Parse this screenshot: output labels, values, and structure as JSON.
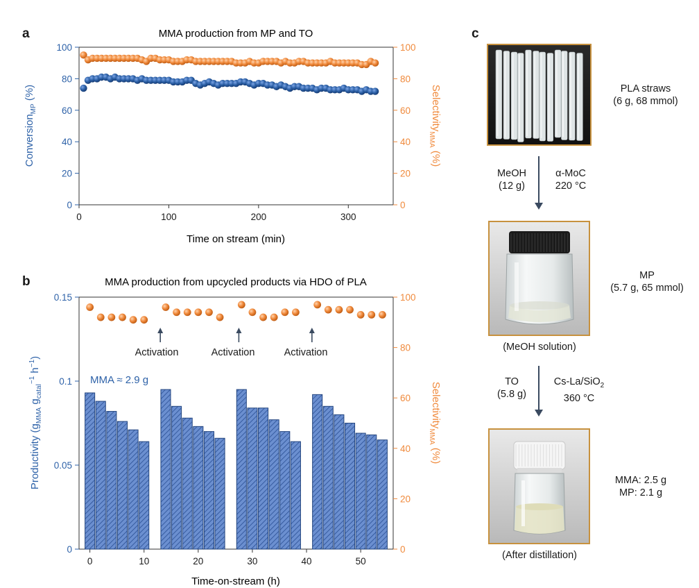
{
  "colors": {
    "blue": "#2e62a8",
    "orange": "#f08a3c",
    "photo_border": "#c7913e",
    "bar_fill": "#6b8fd0",
    "axis": "#333333"
  },
  "panel_a": {
    "letter": "a",
    "title": "MMA production from MP and TO",
    "xlabel": "Time on stream (min)",
    "ylabel_left": {
      "main": "Conversion",
      "sub": "MP",
      "unit": " (%)"
    },
    "ylabel_right": {
      "main": "Selectivity",
      "sub": "MMA",
      "unit": " (%)"
    }
  },
  "panel_b": {
    "letter": "b",
    "title": "MMA production from upcycled products via HDO of PLA",
    "xlabel": "Time-on-stream (h)",
    "ylabel_left": {
      "p1": "Productivity (g",
      "s1": "MMA",
      "p2": " g",
      "s2": "catal",
      "sup1": "−1",
      "p3": " h",
      "sup2": "−1",
      "p4": ")"
    },
    "ylabel_right": {
      "main": "Selectivity",
      "sub": "MMA",
      "unit": " (%)"
    },
    "annotation": "MMA ≈ 2.9 g",
    "activation_labels": [
      "Activation",
      "Activation",
      "Activation"
    ]
  },
  "panel_c": {
    "letter": "c",
    "step1": {
      "left_line1": "MeOH",
      "left_line2": "(12 g)",
      "right_line1": "α-MoC",
      "right_line2": "220 °C"
    },
    "step2": {
      "left_line1": "TO",
      "left_line2": "(5.8 g)",
      "right_line1a": "Cs-La/SiO",
      "right_line1_sub": "2",
      "right_line2": "360 °C"
    },
    "photo1_label": {
      "line1": "PLA straws",
      "line2": "(6 g, 68 mmol)"
    },
    "photo2_label": {
      "line1": "MP",
      "line2": "(5.7 g, 65 mmol)"
    },
    "photo2_caption": "(MeOH solution)",
    "photo3_label": {
      "line1": "MMA: 2.5 g",
      "line2": "MP: 2.1 g"
    },
    "photo3_caption": "(After distillation)"
  },
  "chart_data": [
    {
      "type": "scatter",
      "title": "MMA production from MP and TO",
      "xlabel": "Time on stream (min)",
      "ylabel": "ConversionMP (%)",
      "y2label": "SelectivityMMA (%)",
      "xlim": [
        0,
        350
      ],
      "ylim": [
        0,
        100
      ],
      "y2lim": [
        0,
        100
      ],
      "xticks": [
        0,
        100,
        200,
        300
      ],
      "yticks": [
        0,
        20,
        40,
        60,
        80,
        100
      ],
      "y2ticks": [
        0,
        20,
        40,
        60,
        80,
        100
      ],
      "series": [
        {
          "axis": "left",
          "color": "#2e62a8",
          "x": [
            5,
            10,
            15,
            20,
            25,
            30,
            35,
            40,
            45,
            50,
            55,
            60,
            65,
            70,
            75,
            80,
            85,
            90,
            95,
            100,
            105,
            110,
            115,
            120,
            125,
            130,
            135,
            140,
            145,
            150,
            155,
            160,
            165,
            170,
            175,
            180,
            185,
            190,
            195,
            200,
            205,
            210,
            215,
            220,
            225,
            230,
            235,
            240,
            245,
            250,
            255,
            260,
            265,
            270,
            275,
            280,
            285,
            290,
            295,
            300,
            305,
            310,
            315,
            320,
            325,
            330
          ],
          "values": [
            74,
            79,
            80,
            80,
            81,
            81,
            80,
            81,
            80,
            80,
            80,
            80,
            79,
            80,
            79,
            79,
            79,
            79,
            79,
            79,
            78,
            78,
            78,
            79,
            79,
            77,
            76,
            77,
            78,
            77,
            76,
            77,
            77,
            77,
            77,
            78,
            78,
            77,
            76,
            77,
            77,
            76,
            76,
            75,
            76,
            75,
            74,
            75,
            75,
            74,
            74,
            74,
            73,
            74,
            74,
            73,
            73,
            73,
            74,
            73,
            73,
            73,
            72,
            73,
            72,
            72
          ]
        },
        {
          "axis": "right",
          "color": "#f08a3c",
          "x": [
            5,
            10,
            15,
            20,
            25,
            30,
            35,
            40,
            45,
            50,
            55,
            60,
            65,
            70,
            75,
            80,
            85,
            90,
            95,
            100,
            105,
            110,
            115,
            120,
            125,
            130,
            135,
            140,
            145,
            150,
            155,
            160,
            165,
            170,
            175,
            180,
            185,
            190,
            195,
            200,
            205,
            210,
            215,
            220,
            225,
            230,
            235,
            240,
            245,
            250,
            255,
            260,
            265,
            270,
            275,
            280,
            285,
            290,
            295,
            300,
            305,
            310,
            315,
            320,
            325,
            330
          ],
          "values": [
            95,
            92,
            93,
            93,
            93,
            93,
            93,
            93,
            93,
            93,
            93,
            93,
            93,
            92,
            91,
            93,
            93,
            92,
            92,
            92,
            91,
            91,
            91,
            92,
            92,
            91,
            91,
            91,
            91,
            91,
            91,
            91,
            91,
            91,
            90,
            90,
            90,
            91,
            90,
            90,
            91,
            91,
            91,
            91,
            90,
            91,
            90,
            90,
            91,
            91,
            90,
            90,
            90,
            90,
            90,
            91,
            90,
            90,
            90,
            90,
            90,
            90,
            89,
            89,
            91,
            90
          ]
        }
      ]
    },
    {
      "type": "bar",
      "title": "MMA production from upcycled products via HDO of PLA",
      "xlabel": "Time-on-stream (h)",
      "ylabel": "Productivity (gMMA gcatal−1 h−1)",
      "y2label": "SelectivityMMA (%)",
      "xlim": [
        -2,
        56
      ],
      "ylim": [
        0,
        0.15
      ],
      "y2lim": [
        0,
        100
      ],
      "xticks": [
        0,
        10,
        20,
        30,
        40,
        50
      ],
      "yticks": [
        0,
        0.05,
        0.1,
        0.15
      ],
      "y2ticks": [
        0,
        20,
        40,
        60,
        80,
        100
      ],
      "bar_width": 1.8,
      "bars": {
        "x": [
          0,
          2,
          4,
          6,
          8,
          10,
          14,
          16,
          18,
          20,
          22,
          24,
          28,
          30,
          32,
          34,
          36,
          38,
          42,
          44,
          46,
          48,
          50,
          52,
          54
        ],
        "values": [
          0.093,
          0.088,
          0.082,
          0.076,
          0.071,
          0.064,
          0.095,
          0.085,
          0.078,
          0.073,
          0.07,
          0.066,
          0.095,
          0.084,
          0.084,
          0.077,
          0.07,
          0.064,
          0.092,
          0.085,
          0.08,
          0.075,
          0.069,
          0.068,
          0.065
        ]
      },
      "selectivity": {
        "x": [
          0,
          2,
          4,
          6,
          8,
          10,
          14,
          16,
          18,
          20,
          22,
          24,
          28,
          30,
          32,
          34,
          36,
          38,
          42,
          44,
          46,
          48,
          50,
          52,
          54
        ],
        "values": [
          96,
          92,
          92,
          92,
          91,
          91,
          96,
          94,
          94,
          94,
          94,
          92,
          97,
          94,
          92,
          92,
          94,
          94,
          97,
          95,
          95,
          95,
          93,
          93,
          93
        ]
      },
      "activation_x": [
        13,
        27.5,
        41
      ],
      "annotation": "MMA ≈ 2.9 g"
    }
  ]
}
